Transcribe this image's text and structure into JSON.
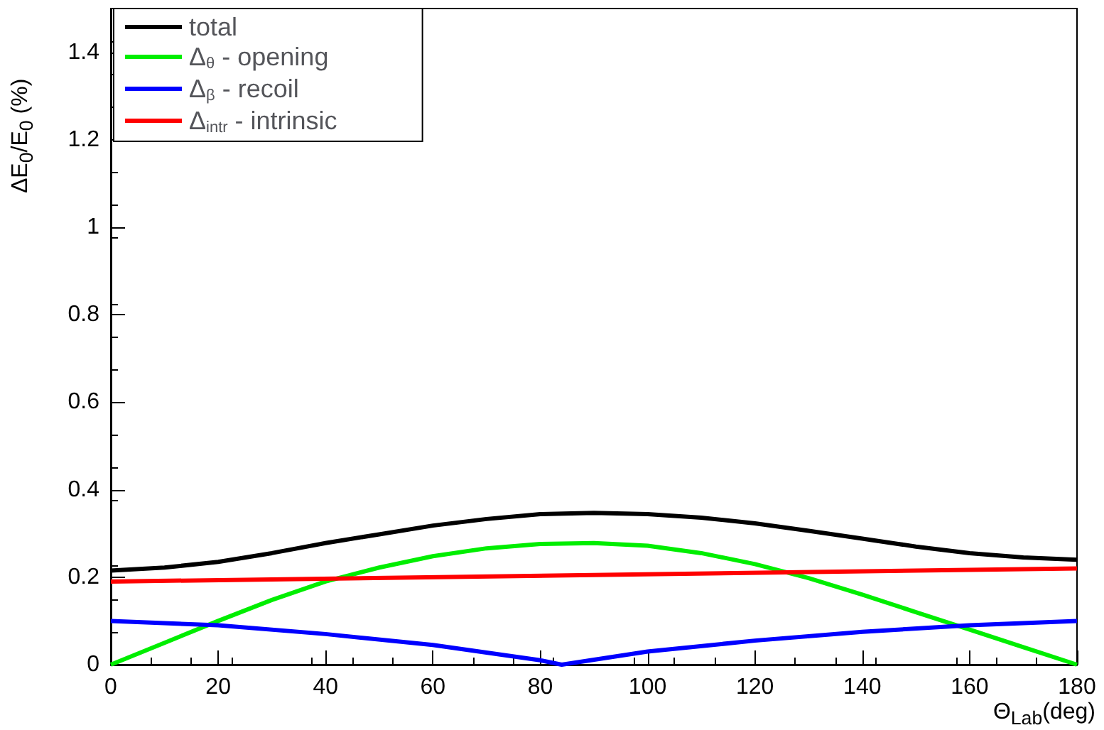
{
  "chart_data": {
    "type": "line",
    "xlabel": "Θ$_{Lab}$(deg)",
    "ylabel": "ΔE$_{0}$/E$_{0}$ (%)",
    "xlim": [
      0,
      180
    ],
    "xticks": [
      0,
      20,
      40,
      60,
      80,
      100,
      120,
      140,
      160,
      180
    ],
    "ylim": [
      0,
      1.5
    ],
    "yticks": [
      0,
      0.2,
      0.4,
      0.6,
      0.8,
      1,
      1.2,
      1.4
    ],
    "grid": false,
    "legend": "top left",
    "marker": "none",
    "line_style": "solid",
    "series": [
      {
        "name": "total",
        "color": "#000000",
        "x": [
          0,
          10,
          20,
          30,
          40,
          50,
          60,
          70,
          80,
          90,
          100,
          110,
          120,
          130,
          140,
          150,
          160,
          170,
          180
        ],
        "values": [
          0.215,
          0.222,
          0.235,
          0.255,
          0.278,
          0.298,
          0.318,
          0.333,
          0.344,
          0.347,
          0.344,
          0.336,
          0.323,
          0.306,
          0.288,
          0.27,
          0.255,
          0.245,
          0.24
        ]
      },
      {
        "name": "Δ$_{θ}$ - opening",
        "color": "#00ee00",
        "x": [
          0,
          10,
          20,
          30,
          40,
          50,
          60,
          70,
          80,
          90,
          100,
          110,
          120,
          130,
          140,
          150,
          160,
          170,
          180
        ],
        "values": [
          0,
          0.05,
          0.1,
          0.148,
          0.19,
          0.222,
          0.248,
          0.266,
          0.276,
          0.278,
          0.272,
          0.255,
          0.23,
          0.198,
          0.16,
          0.12,
          0.08,
          0.04,
          0
        ]
      },
      {
        "name": "Δ$_{β}$ - recoil",
        "color": "#0000ff",
        "x": [
          0,
          20,
          40,
          60,
          80,
          84,
          100,
          120,
          140,
          160,
          180
        ],
        "values": [
          0.1,
          0.09,
          0.07,
          0.045,
          0.01,
          0,
          0.03,
          0.055,
          0.075,
          0.09,
          0.1
        ]
      },
      {
        "name": "Δ$_{intr}$ - intrinsic",
        "color": "#ff0000",
        "x": [
          0,
          180
        ],
        "values": [
          0.19,
          0.22
        ]
      }
    ]
  }
}
